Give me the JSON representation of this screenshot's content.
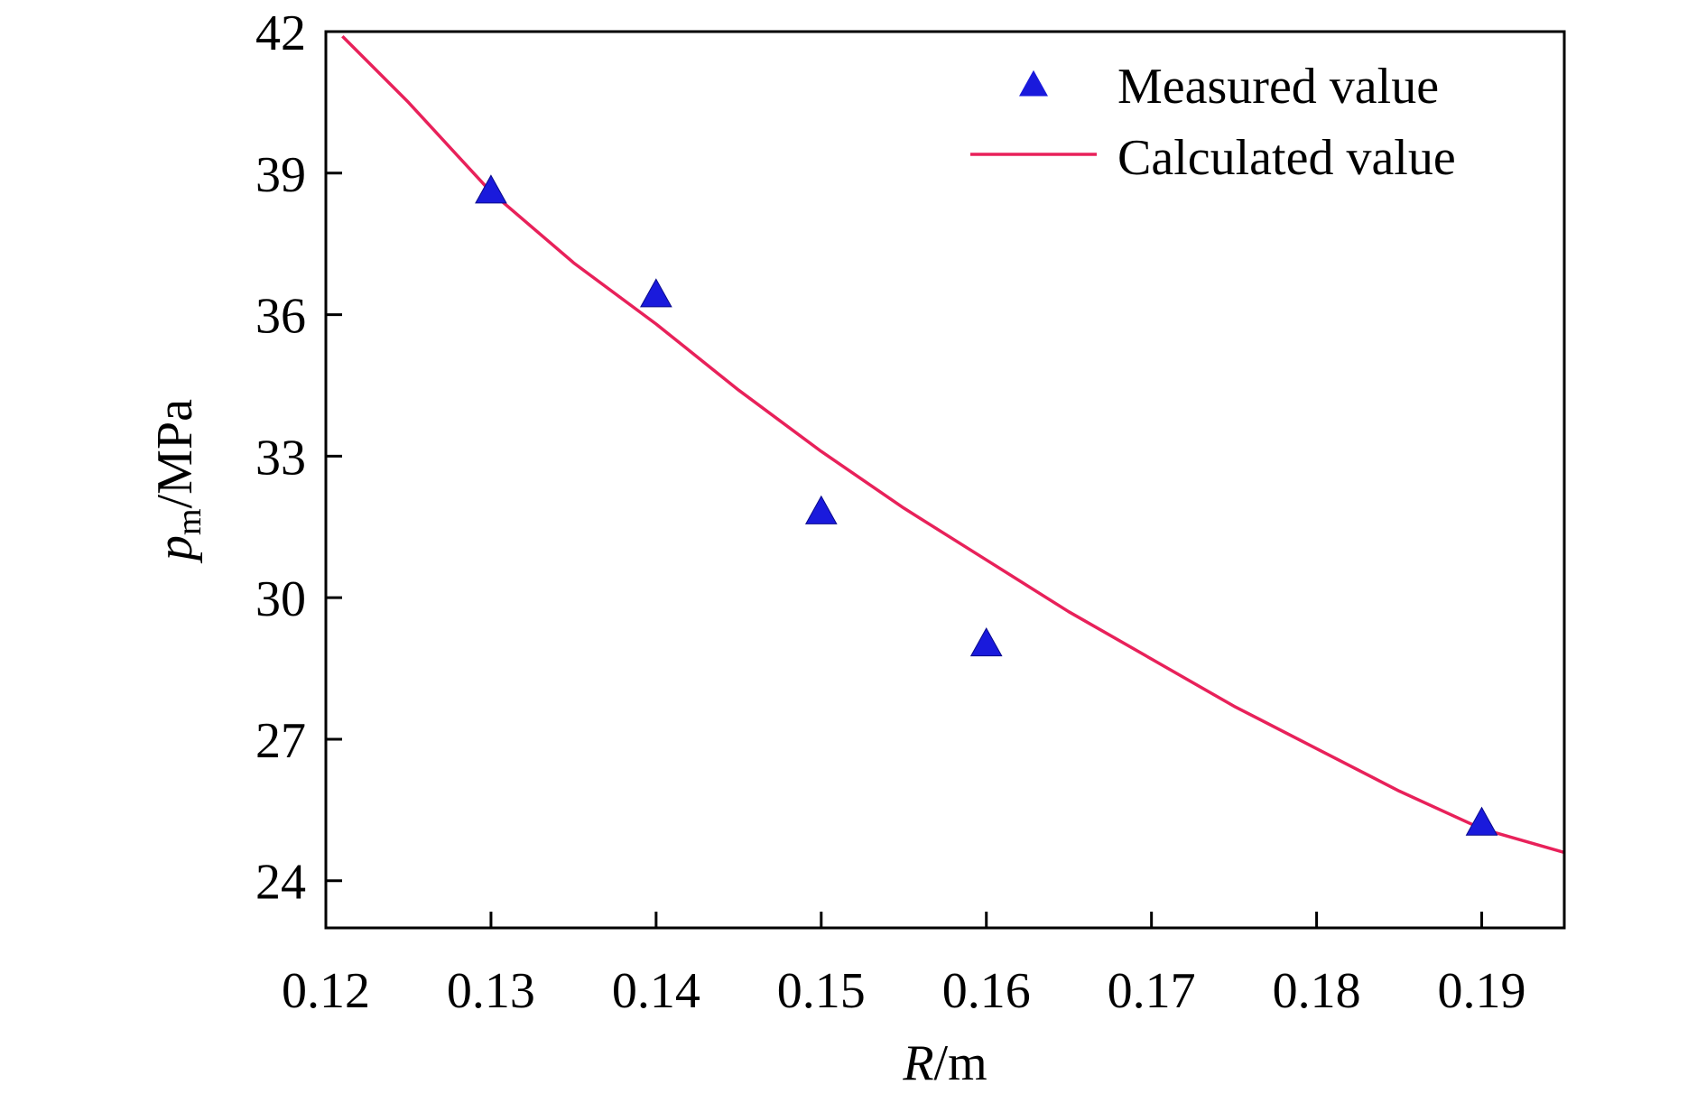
{
  "chart_data": {
    "type": "scatter",
    "title": "",
    "xlabel": {
      "var": "R",
      "unit": "/m"
    },
    "ylabel": {
      "var": "p",
      "sub": "m",
      "unit": "/MPa"
    },
    "xlim": [
      0.12,
      0.195
    ],
    "ylim": [
      23,
      42
    ],
    "xticks": [
      0.12,
      0.13,
      0.14,
      0.15,
      0.16,
      0.17,
      0.18,
      0.19
    ],
    "xtick_labels": [
      "0.12",
      "0.13",
      "0.14",
      "0.15",
      "0.16",
      "0.17",
      "0.18",
      "0.19"
    ],
    "yticks": [
      24,
      27,
      30,
      33,
      36,
      39,
      42
    ],
    "ytick_labels": [
      "24",
      "27",
      "30",
      "33",
      "36",
      "39",
      "42"
    ],
    "grid": false,
    "legend_position": "top-right",
    "series": [
      {
        "name": "Measured value",
        "kind": "scatter",
        "marker": "triangle",
        "color": "#1a1adc",
        "x": [
          0.13,
          0.14,
          0.15,
          0.16,
          0.19
        ],
        "y": [
          38.6,
          36.4,
          31.8,
          29.0,
          25.2
        ]
      },
      {
        "name": "Calculated value",
        "kind": "line",
        "color": "#e8215a",
        "x": [
          0.121,
          0.125,
          0.13,
          0.135,
          0.14,
          0.145,
          0.15,
          0.155,
          0.16,
          0.165,
          0.17,
          0.175,
          0.18,
          0.185,
          0.19,
          0.195
        ],
        "y": [
          41.9,
          40.5,
          38.6,
          37.1,
          35.8,
          34.4,
          33.1,
          31.9,
          30.8,
          29.7,
          28.7,
          27.7,
          26.8,
          25.9,
          25.1,
          24.6
        ]
      }
    ]
  }
}
